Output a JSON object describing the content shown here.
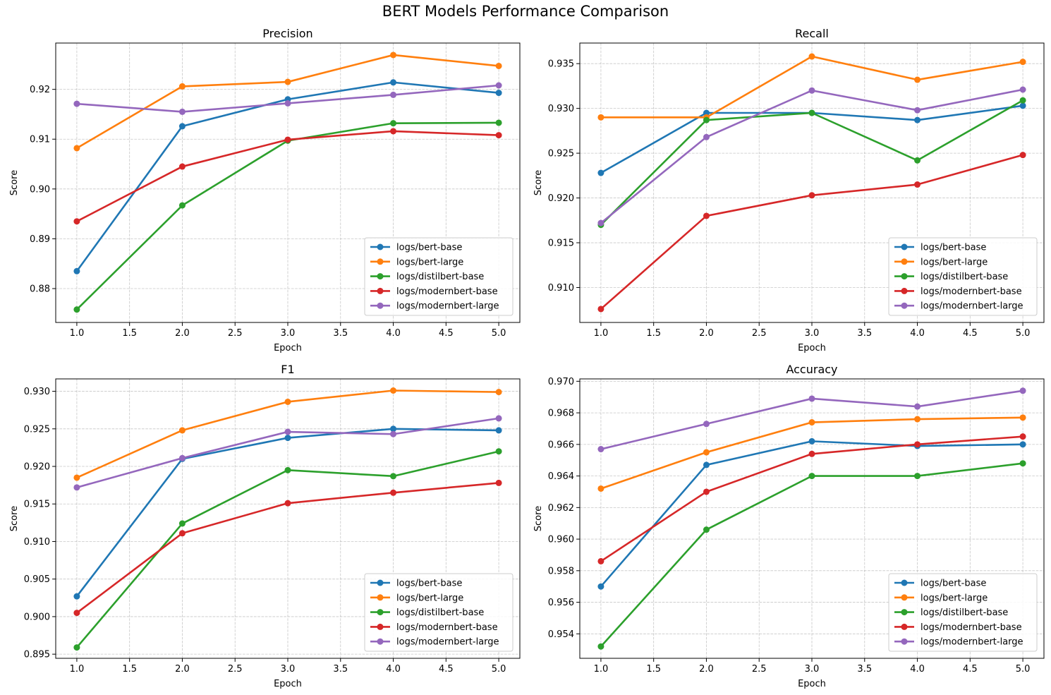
{
  "figure": {
    "title": "BERT Models Performance Comparison"
  },
  "colors": {
    "logs/bert-base": "#1f77b4",
    "logs/bert-large": "#ff7f0e",
    "logs/distilbert-base": "#2ca02c",
    "logs/modernbert-base": "#d62728",
    "logs/modernbert-large": "#9467bd"
  },
  "chart_data": [
    {
      "type": "line",
      "title": "Precision",
      "xlabel": "Epoch",
      "ylabel": "Score",
      "x": [
        1,
        2,
        3,
        4,
        5
      ],
      "xlim": [
        0.8,
        5.2
      ],
      "ylim": [
        0.8732,
        0.9293
      ],
      "xticks": [
        "1.0",
        "1.5",
        "2.0",
        "2.5",
        "3.0",
        "3.5",
        "4.0",
        "4.5",
        "5.0"
      ],
      "yticks": [
        "0.88",
        "0.89",
        "0.90",
        "0.91",
        "0.92"
      ],
      "grid": true,
      "legend_position": "lower right",
      "series": [
        {
          "name": "logs/bert-base",
          "values": [
            0.8835,
            0.9126,
            0.918,
            0.9214,
            0.9193
          ]
        },
        {
          "name": "logs/bert-large",
          "values": [
            0.9082,
            0.9206,
            0.9215,
            0.9269,
            0.9247
          ]
        },
        {
          "name": "logs/distilbert-base",
          "values": [
            0.8758,
            0.8967,
            0.9097,
            0.9132,
            0.9133
          ]
        },
        {
          "name": "logs/modernbert-base",
          "values": [
            0.8935,
            0.9045,
            0.9099,
            0.9116,
            0.9108
          ]
        },
        {
          "name": "logs/modernbert-large",
          "values": [
            0.9171,
            0.9155,
            0.9172,
            0.9189,
            0.9208
          ]
        }
      ]
    },
    {
      "type": "line",
      "title": "Recall",
      "xlabel": "Epoch",
      "ylabel": "Score",
      "x": [
        1,
        2,
        3,
        4,
        5
      ],
      "xlim": [
        0.8,
        5.2
      ],
      "ylim": [
        0.9061,
        0.9373
      ],
      "xticks": [
        "1.0",
        "1.5",
        "2.0",
        "2.5",
        "3.0",
        "3.5",
        "4.0",
        "4.5",
        "5.0"
      ],
      "yticks": [
        "0.910",
        "0.915",
        "0.920",
        "0.925",
        "0.930",
        "0.935"
      ],
      "grid": true,
      "legend_position": "lower right",
      "series": [
        {
          "name": "logs/bert-base",
          "values": [
            0.9228,
            0.9295,
            0.9295,
            0.9287,
            0.9303
          ]
        },
        {
          "name": "logs/bert-large",
          "values": [
            0.929,
            0.929,
            0.9358,
            0.9332,
            0.9352
          ]
        },
        {
          "name": "logs/distilbert-base",
          "values": [
            0.917,
            0.9287,
            0.9295,
            0.9242,
            0.9309
          ]
        },
        {
          "name": "logs/modernbert-base",
          "values": [
            0.9076,
            0.918,
            0.9203,
            0.9215,
            0.9248
          ]
        },
        {
          "name": "logs/modernbert-large",
          "values": [
            0.9172,
            0.9268,
            0.932,
            0.9298,
            0.9321
          ]
        }
      ]
    },
    {
      "type": "line",
      "title": "F1",
      "xlabel": "Epoch",
      "ylabel": "Score",
      "x": [
        1,
        2,
        3,
        4,
        5
      ],
      "xlim": [
        0.8,
        5.2
      ],
      "ylim": [
        0.89445,
        0.93165
      ],
      "xticks": [
        "1.0",
        "1.5",
        "2.0",
        "2.5",
        "3.0",
        "3.5",
        "4.0",
        "4.5",
        "5.0"
      ],
      "yticks": [
        "0.895",
        "0.900",
        "0.905",
        "0.910",
        "0.915",
        "0.920",
        "0.925",
        "0.930"
      ],
      "grid": true,
      "legend_position": "lower right",
      "series": [
        {
          "name": "logs/bert-base",
          "values": [
            0.9027,
            0.921,
            0.9238,
            0.925,
            0.9248
          ]
        },
        {
          "name": "logs/bert-large",
          "values": [
            0.9185,
            0.9248,
            0.9286,
            0.9301,
            0.9299
          ]
        },
        {
          "name": "logs/distilbert-base",
          "values": [
            0.8959,
            0.9124,
            0.9195,
            0.9187,
            0.922
          ]
        },
        {
          "name": "logs/modernbert-base",
          "values": [
            0.9005,
            0.9111,
            0.9151,
            0.9165,
            0.9178
          ]
        },
        {
          "name": "logs/modernbert-large",
          "values": [
            0.9172,
            0.9211,
            0.9246,
            0.9243,
            0.9264
          ]
        }
      ]
    },
    {
      "type": "line",
      "title": "Accuracy",
      "xlabel": "Epoch",
      "ylabel": "Score",
      "x": [
        1,
        2,
        3,
        4,
        5
      ],
      "xlim": [
        0.8,
        5.2
      ],
      "ylim": [
        0.95245,
        0.97015
      ],
      "xticks": [
        "1.0",
        "1.5",
        "2.0",
        "2.5",
        "3.0",
        "3.5",
        "4.0",
        "4.5",
        "5.0"
      ],
      "yticks": [
        "0.954",
        "0.956",
        "0.958",
        "0.960",
        "0.962",
        "0.964",
        "0.966",
        "0.968",
        "0.970"
      ],
      "grid": true,
      "legend_position": "lower right",
      "series": [
        {
          "name": "logs/bert-base",
          "values": [
            0.957,
            0.9647,
            0.9662,
            0.9659,
            0.966
          ]
        },
        {
          "name": "logs/bert-large",
          "values": [
            0.9632,
            0.9655,
            0.9674,
            0.9676,
            0.9677
          ]
        },
        {
          "name": "logs/distilbert-base",
          "values": [
            0.9532,
            0.9606,
            0.964,
            0.964,
            0.9648
          ]
        },
        {
          "name": "logs/modernbert-base",
          "values": [
            0.9586,
            0.963,
            0.9654,
            0.966,
            0.9665
          ]
        },
        {
          "name": "logs/modernbert-large",
          "values": [
            0.9657,
            0.9673,
            0.9689,
            0.9684,
            0.9694
          ]
        }
      ]
    }
  ]
}
